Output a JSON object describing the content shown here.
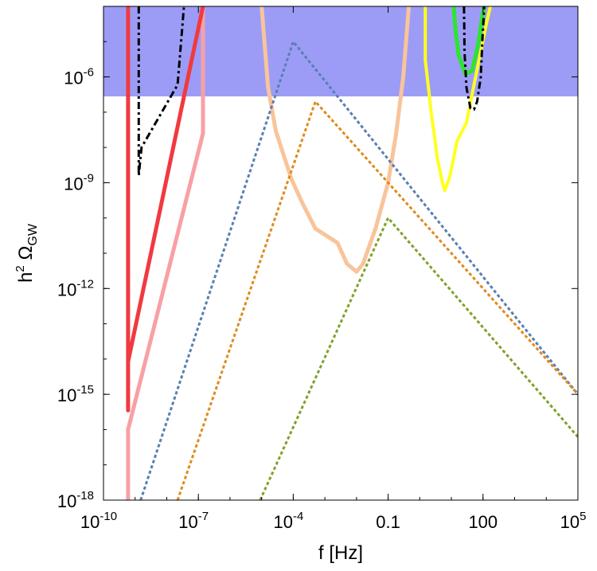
{
  "chart_data": {
    "type": "line",
    "xlabel": "f [Hz]",
    "ylabel": "h^2 Ω_GW",
    "x_scale": "log",
    "y_scale": "log",
    "xlim": [
      1e-10,
      100000.0
    ],
    "ylim": [
      1e-18,
      0.0001
    ],
    "grid": false,
    "x_ticks": [
      {
        "value": 1e-10,
        "label": "10",
        "exp": "-10"
      },
      {
        "value": 1e-07,
        "label": "10",
        "exp": "-7"
      },
      {
        "value": 0.0001,
        "label": "10",
        "exp": "-4"
      },
      {
        "value": 0.1,
        "label": "0.1",
        "exp": ""
      },
      {
        "value": 100,
        "label": "100",
        "exp": ""
      },
      {
        "value": 100000.0,
        "label": "10",
        "exp": "5"
      }
    ],
    "y_ticks": [
      {
        "value": 1e-06,
        "label": "10",
        "exp": "-6"
      },
      {
        "value": 1e-09,
        "label": "10",
        "exp": "-9"
      },
      {
        "value": 1e-12,
        "label": "10",
        "exp": "-12"
      },
      {
        "value": 1e-15,
        "label": "10",
        "exp": "-15"
      },
      {
        "value": 1e-18,
        "label": "10",
        "exp": "-18"
      }
    ],
    "shaded_region": {
      "x_range": [
        1e-10,
        100000.0
      ],
      "y_range": [
        2.8e-07,
        0.0001
      ],
      "color": "#9c9cf7"
    },
    "series": [
      {
        "color": "#f8a0a4",
        "style": "solid",
        "width": 5,
        "points": [
          [
            6e-10,
            1e-18
          ],
          [
            6e-10,
            1e-16
          ],
          [
            1.4e-07,
            2.5e-08
          ],
          [
            1.4e-07,
            0.0001
          ]
        ]
      },
      {
        "color": "#f03a40",
        "style": "solid",
        "width": 5,
        "points": [
          [
            6e-10,
            0.0001
          ],
          [
            6e-10,
            3.5e-16
          ],
          [
            6e-10,
            8.5e-15
          ],
          [
            1.4e-07,
            0.0001
          ]
        ]
      },
      {
        "color": "#000000",
        "style": "dashdot",
        "width": 3,
        "points": [
          [
            1.3e-09,
            0.0001
          ],
          [
            1.3e-09,
            1.6e-09
          ],
          [
            1.6e-09,
            1e-08
          ],
          [
            2.2e-08,
            6e-07
          ],
          [
            3.5e-08,
            0.0001
          ]
        ]
      },
      {
        "color": "#f9c49a",
        "style": "solid",
        "width": 5,
        "points": [
          [
            1e-05,
            0.0001
          ],
          [
            1.6e-05,
            5e-07
          ],
          [
            2.8e-05,
            3e-08
          ],
          [
            5e-05,
            6e-09
          ],
          [
            9e-05,
            1.2e-09
          ],
          [
            0.0002,
            2.5e-10
          ],
          [
            0.0005,
            5e-11
          ],
          [
            0.0012,
            3e-11
          ],
          [
            0.0025,
            2e-11
          ],
          [
            0.005,
            5e-12
          ],
          [
            0.01,
            3e-12
          ],
          [
            0.016,
            5e-12
          ],
          [
            0.04,
            5e-11
          ],
          [
            0.1,
            1e-09
          ],
          [
            0.18,
            2.5e-08
          ],
          [
            0.3,
            1e-06
          ],
          [
            0.45,
            0.0001
          ]
        ]
      },
      {
        "color": "#ffff1f",
        "style": "solid",
        "width": 4,
        "points": [
          [
            1.5,
            0.0001
          ],
          [
            1.5,
            3e-06
          ],
          [
            2.3,
            1e-07
          ],
          [
            3.6,
            5e-09
          ],
          [
            5.2,
            1e-09
          ],
          [
            6.2,
            6e-10
          ],
          [
            9,
            1.5e-09
          ],
          [
            15,
            1.5e-08
          ],
          [
            30,
            5e-08
          ],
          [
            50,
            5e-07
          ],
          [
            75,
            3e-06
          ],
          [
            125,
            3e-05
          ],
          [
            170,
            0.0001
          ]
        ]
      },
      {
        "color": "#2de52d",
        "style": "solid",
        "width": 5,
        "points": [
          [
            12,
            0.0001
          ],
          [
            13,
            3e-05
          ],
          [
            17,
            4e-06
          ],
          [
            28,
            1.2e-06
          ],
          [
            45,
            1.5e-06
          ],
          [
            70,
            8e-06
          ],
          [
            95,
            5e-05
          ],
          [
            110,
            0.0001
          ]
        ]
      },
      {
        "color": "#000000",
        "style": "dashdot",
        "width": 3,
        "points": [
          [
            25,
            0.0001
          ],
          [
            26,
            5e-06
          ],
          [
            30,
            5e-07
          ],
          [
            40,
            1.3e-07
          ],
          [
            52,
            1.2e-07
          ],
          [
            65,
            2e-07
          ],
          [
            85,
            1e-06
          ],
          [
            95,
            1e-05
          ],
          [
            110,
            0.0001
          ]
        ]
      },
      {
        "color": "#5a7fb0",
        "style": "dotted",
        "width": 3,
        "points": [
          [
            1.5e-09,
            1e-18
          ],
          [
            0.0001,
            1e-05
          ],
          [
            100000.0,
            1e-15
          ]
        ]
      },
      {
        "color": "#e08a1e",
        "style": "dotted",
        "width": 3,
        "points": [
          [
            2.2e-08,
            1e-18
          ],
          [
            0.0005,
            2e-07
          ],
          [
            100000.0,
            1e-15
          ]
        ]
      },
      {
        "color": "#7fa22a",
        "style": "dotted",
        "width": 3,
        "points": [
          [
            9e-06,
            1e-18
          ],
          [
            0.1,
            1e-10
          ],
          [
            100000.0,
            6.2e-17
          ]
        ]
      }
    ]
  }
}
